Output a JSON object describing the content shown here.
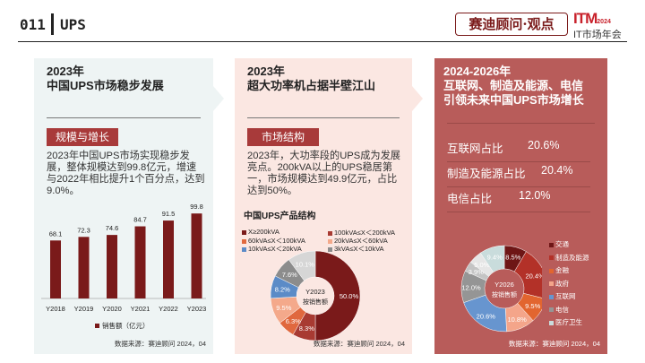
{
  "header": {
    "page_number": "011",
    "title": "UPS",
    "brand": "赛迪顾问·观点",
    "logo_text": "ITM",
    "logo_year": "2024",
    "logo_sub": "IT市场年会"
  },
  "left": {
    "title_line1": "2023年",
    "title_line2": "中国UPS市场稳步发展",
    "tag": "规模与增长",
    "text": "2023年中国UPS市场实现稳步发展，整体规模达到99.8亿元，增速与2022年相比提升1个百分点，达到9.0%。",
    "source": "数据来源：赛迪顾问 2024，04"
  },
  "middle": {
    "title_line1": "2023年",
    "title_line2": "超大功率机占据半壁江山",
    "tag": "市场结构",
    "text": "2023年，大功率段的UPS成为发展亮点。200kVA以上的UPS稳居第一，市场规模达到49.9亿元，占比达到50%。",
    "chart_title": "中国UPS产品结构",
    "source": "数据来源：赛迪顾问 2024，04"
  },
  "right": {
    "title_line1": "2024-2026年",
    "title_line2": "互联网、制造及能源、电信",
    "title_line3": "引领未来中国UPS市场增长",
    "stats": [
      {
        "label": "互联网占比",
        "value": "20.6%"
      },
      {
        "label": "制造及能源占比",
        "value": "20.4%"
      },
      {
        "label": "电信占比",
        "value": "12.0%"
      }
    ],
    "source": "数据来源：赛迪顾问 2024，04"
  },
  "chart_data": [
    {
      "type": "bar",
      "title": "",
      "categories": [
        "Y2018",
        "Y2019",
        "Y2020",
        "Y2021",
        "Y2022",
        "Y2023"
      ],
      "values": [
        68.1,
        72.3,
        74.6,
        84.7,
        91.5,
        99.8
      ],
      "value_labels": [
        "68.1",
        "72.3",
        "74.6",
        "84.7",
        "91.5",
        "99.8"
      ],
      "legend": "销售额（亿元）",
      "ylim": [
        0,
        100
      ],
      "color": "#7a1a1a"
    },
    {
      "type": "pie",
      "title": "中国UPS产品结构",
      "center_line1": "Y2023",
      "center_line2": "按销售额",
      "slices": [
        {
          "name": "X≥200kVA",
          "value": 50.0,
          "label": "50.0%",
          "color": "#7a1a1a"
        },
        {
          "name": "100kVA≤X＜200kVA",
          "value": 8.3,
          "label": "8.3%",
          "color": "#a83a32"
        },
        {
          "name": "60kVA≤X＜100kVA",
          "value": 6.3,
          "label": "6.3%",
          "color": "#e0683e"
        },
        {
          "name": "20kVA≤X＜60kVA",
          "value": 9.5,
          "label": "9.5%",
          "color": "#f4a98b"
        },
        {
          "name": "10kVA≤X＜20kVA",
          "value": 8.2,
          "label": "8.2%",
          "color": "#5b8bc7"
        },
        {
          "name": "3kVA≤X＜10kVA",
          "value": 7.6,
          "label": "7.6%",
          "color": "#8c8c8c"
        },
        {
          "name": null,
          "value": 10.1,
          "label": "10.1%",
          "color": "#d6d6d6"
        }
      ]
    },
    {
      "type": "pie",
      "title": "",
      "center_line1": "Y2026",
      "center_line2": "按销售额",
      "slices": [
        {
          "name": "交通",
          "value": 8.5,
          "label": "8.5%",
          "color": "#6e1616"
        },
        {
          "name": "制造及能源",
          "value": 20.4,
          "label": "20.4%",
          "color": "#b33128"
        },
        {
          "name": "金融",
          "value": 9.5,
          "label": "9.5%",
          "color": "#e2652f"
        },
        {
          "name": "政府",
          "value": 10.8,
          "label": "10.8%",
          "color": "#f4a58a"
        },
        {
          "name": "互联网",
          "value": 20.6,
          "label": "20.6%",
          "color": "#6795cf"
        },
        {
          "name": "电信",
          "value": 12.0,
          "label": "12.0%",
          "color": "#959595"
        },
        {
          "name": null,
          "value": 3.9,
          "label": "3.9%",
          "color": "#c4c4c4"
        },
        {
          "name": null,
          "value": 5.0,
          "label": "5.0%",
          "color": "#e6e6e6"
        },
        {
          "name": "医疗卫生",
          "value": 9.4,
          "label": "9.4%",
          "color": "#c9dcdc"
        }
      ]
    }
  ]
}
